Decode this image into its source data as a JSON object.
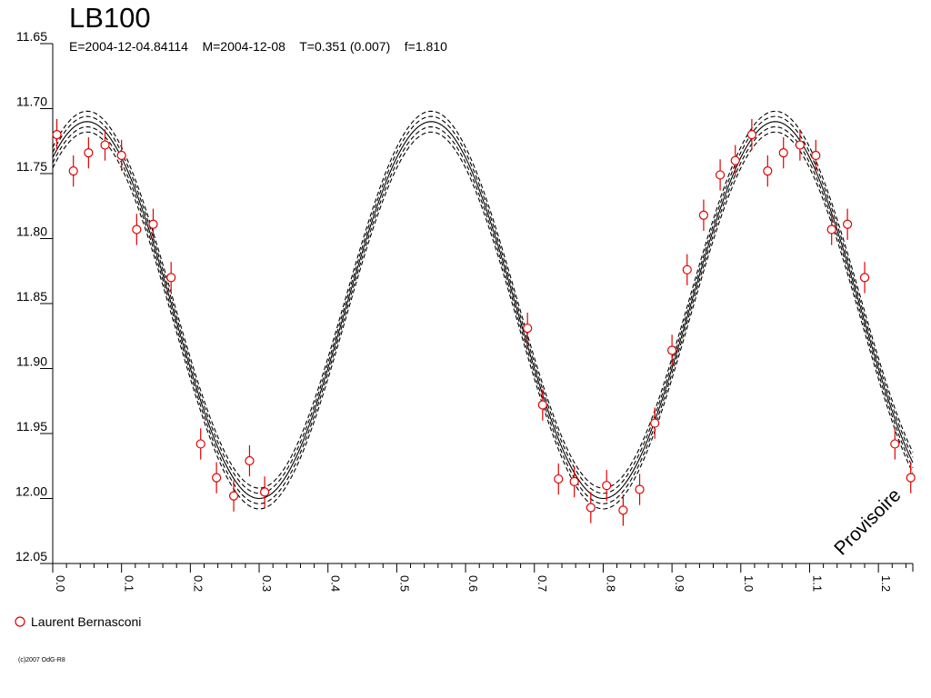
{
  "chart_data": {
    "type": "scatter",
    "title": "LB100",
    "subtitle": "E=2004-12-04.84114    M=2004-12-08    T=0.351 (0.007)    f=1.810",
    "xlabel": "",
    "ylabel": "",
    "xlim": [
      0.0,
      1.25
    ],
    "ylim": [
      11.65,
      12.05
    ],
    "y_inverted": true,
    "x_ticks": [
      "0.0",
      "0.1",
      "0.2",
      "0.3",
      "0.4",
      "0.5",
      "0.6",
      "0.7",
      "0.8",
      "0.9",
      "1.0",
      "1.1",
      "1.2"
    ],
    "y_ticks": [
      "11.65",
      "11.70",
      "11.75",
      "11.80",
      "11.85",
      "11.90",
      "11.95",
      "12.00",
      "12.05"
    ],
    "grid": false,
    "legend_position": "bottom-left",
    "model": {
      "type": "sine",
      "mean": 11.855,
      "amplitude": 0.145,
      "max_phase": 0.05,
      "period": 0.5,
      "envelope_offsets": [
        -0.008,
        -0.004,
        0.0,
        0.004,
        0.008
      ]
    },
    "series": [
      {
        "name": "Laurent Bernasconi",
        "color": "#e00000",
        "marker": "open-circle",
        "points": [
          [
            0.006,
            11.72,
            0.012
          ],
          [
            0.03,
            11.748,
            0.012
          ],
          [
            0.052,
            11.734,
            0.012
          ],
          [
            0.076,
            11.728,
            0.012
          ],
          [
            0.1,
            11.736,
            0.012
          ],
          [
            0.122,
            11.793,
            0.012
          ],
          [
            0.146,
            11.789,
            0.012
          ],
          [
            0.172,
            11.83,
            0.012
          ],
          [
            0.215,
            11.958,
            0.012
          ],
          [
            0.238,
            11.984,
            0.012
          ],
          [
            0.263,
            11.998,
            0.012
          ],
          [
            0.286,
            11.971,
            0.012
          ],
          [
            0.308,
            11.995,
            0.012
          ],
          [
            0.69,
            11.869,
            0.012
          ],
          [
            0.712,
            11.928,
            0.012
          ],
          [
            0.735,
            11.985,
            0.012
          ],
          [
            0.758,
            11.987,
            0.012
          ],
          [
            0.782,
            12.007,
            0.012
          ],
          [
            0.805,
            11.99,
            0.012
          ],
          [
            0.829,
            12.009,
            0.012
          ],
          [
            0.853,
            11.993,
            0.012
          ],
          [
            0.875,
            11.942,
            0.012
          ],
          [
            0.9,
            11.886,
            0.012
          ],
          [
            0.922,
            11.824,
            0.012
          ],
          [
            0.946,
            11.782,
            0.012
          ],
          [
            0.97,
            11.751,
            0.012
          ],
          [
            0.992,
            11.74,
            0.012
          ],
          [
            1.016,
            11.72,
            0.012
          ],
          [
            1.039,
            11.748,
            0.012
          ],
          [
            1.062,
            11.734,
            0.012
          ],
          [
            1.086,
            11.728,
            0.012
          ],
          [
            1.109,
            11.736,
            0.012
          ],
          [
            1.132,
            11.793,
            0.012
          ],
          [
            1.155,
            11.789,
            0.012
          ],
          [
            1.18,
            11.83,
            0.012
          ],
          [
            1.224,
            11.958,
            0.012
          ],
          [
            1.247,
            11.984,
            0.012
          ]
        ]
      }
    ],
    "annotations": [
      "Provisoire"
    ]
  },
  "legend": {
    "label": "Laurent Bernasconi",
    "color": "#e00000"
  },
  "footer": {
    "copyright": "(c)2007 OdG-R8"
  }
}
